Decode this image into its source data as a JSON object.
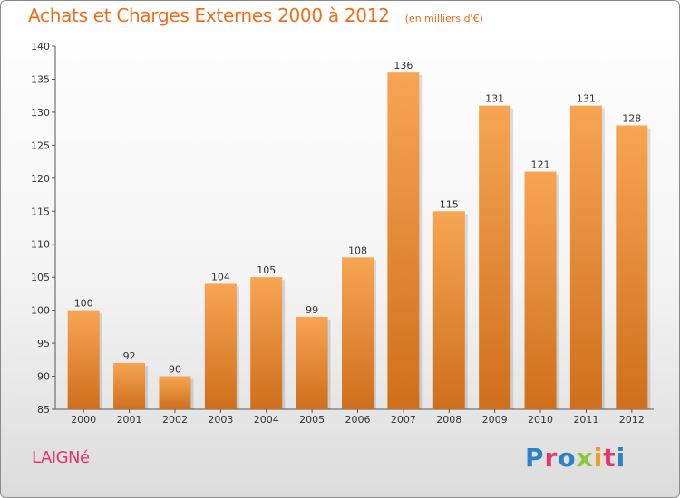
{
  "header": {
    "title": "Achats et Charges Externes 2000 à 2012",
    "subtitle": "(en milliers d'€)"
  },
  "footer": {
    "place": "LAIGNé",
    "logo_letters": [
      "P",
      "r",
      "o",
      "x",
      "i",
      "t",
      "i"
    ]
  },
  "colors": {
    "title": "#ee6f1b",
    "place": "#e8356a",
    "bar_top": "#f7a553",
    "bar_bottom": "#cf6f1b",
    "logo": [
      "#2d82c7",
      "#e8356a",
      "#2d82c7",
      "#8cc63f",
      "#f29b1d",
      "#e8356a",
      "#2d82c7"
    ]
  },
  "chart_data": {
    "type": "bar",
    "categories": [
      "2000",
      "2001",
      "2002",
      "2003",
      "2004",
      "2005",
      "2006",
      "2007",
      "2008",
      "2009",
      "2010",
      "2011",
      "2012"
    ],
    "values": [
      100,
      92,
      90,
      104,
      105,
      99,
      108,
      136,
      115,
      131,
      121,
      131,
      128
    ],
    "ylim": [
      85,
      140
    ],
    "yticks": [
      85,
      90,
      95,
      100,
      105,
      110,
      115,
      120,
      125,
      130,
      135,
      140
    ],
    "grid": false
  }
}
